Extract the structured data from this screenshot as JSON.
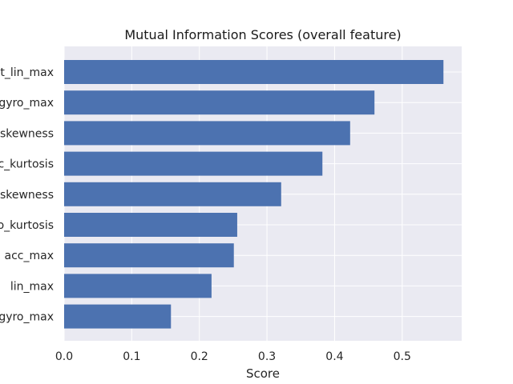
{
  "chart_data": {
    "type": "bar",
    "orientation": "horizontal",
    "title": "Mutual Information Scores (overall feature)",
    "xlabel": "Score",
    "ylabel": "",
    "xlim": [
      0,
      0.588
    ],
    "xticks": [
      0.0,
      0.1,
      0.2,
      0.3,
      0.4,
      0.5
    ],
    "xtick_labels": [
      "0.0",
      "0.1",
      "0.2",
      "0.3",
      "0.4",
      "0.5"
    ],
    "categories": [
      "st_lin_max",
      "gyro_max",
      "skewness",
      "c_kurtosis",
      "skewness",
      "o_kurtosis",
      "acc_max",
      "lin_max",
      "gyro_max"
    ],
    "values": [
      0.561,
      0.459,
      0.423,
      0.382,
      0.321,
      0.256,
      0.251,
      0.218,
      0.158
    ],
    "grid": true,
    "colors": {
      "bar": "#4c72b0",
      "background": "#eaeaf2",
      "grid": "#ffffff"
    }
  }
}
